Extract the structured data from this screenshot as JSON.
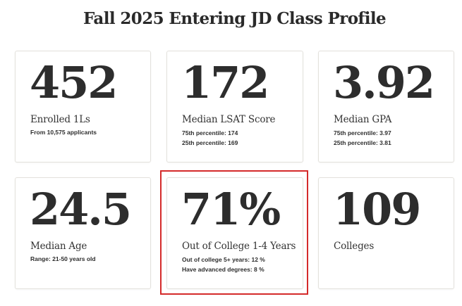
{
  "page": {
    "title": "Fall 2025 Entering JD Class Profile"
  },
  "cards": [
    {
      "value": "452",
      "label": "Enrolled 1Ls",
      "details": [
        "From 10,575 applicants"
      ]
    },
    {
      "value": "172",
      "label": "Median LSAT Score",
      "details": [
        "75th percentile: 174",
        "25th percentile: 169"
      ]
    },
    {
      "value": "3.92",
      "label": "Median GPA",
      "details": [
        "75th percentile: 3.97",
        "25th percentile: 3.81"
      ]
    },
    {
      "value": "24.5",
      "label": "Median Age",
      "details": [
        "Range: 21-50 years old"
      ]
    },
    {
      "value": "71%",
      "label": "Out of College 1-4 Years",
      "details": [
        "Out of college 5+ years: 12 %",
        "Have advanced degrees: 8 %"
      ]
    },
    {
      "value": "109",
      "label": "Colleges",
      "details": []
    }
  ],
  "colors": {
    "highlight_border": "#d42a2a",
    "card_border": "#e3e1dc",
    "text": "#2d2d2d"
  }
}
